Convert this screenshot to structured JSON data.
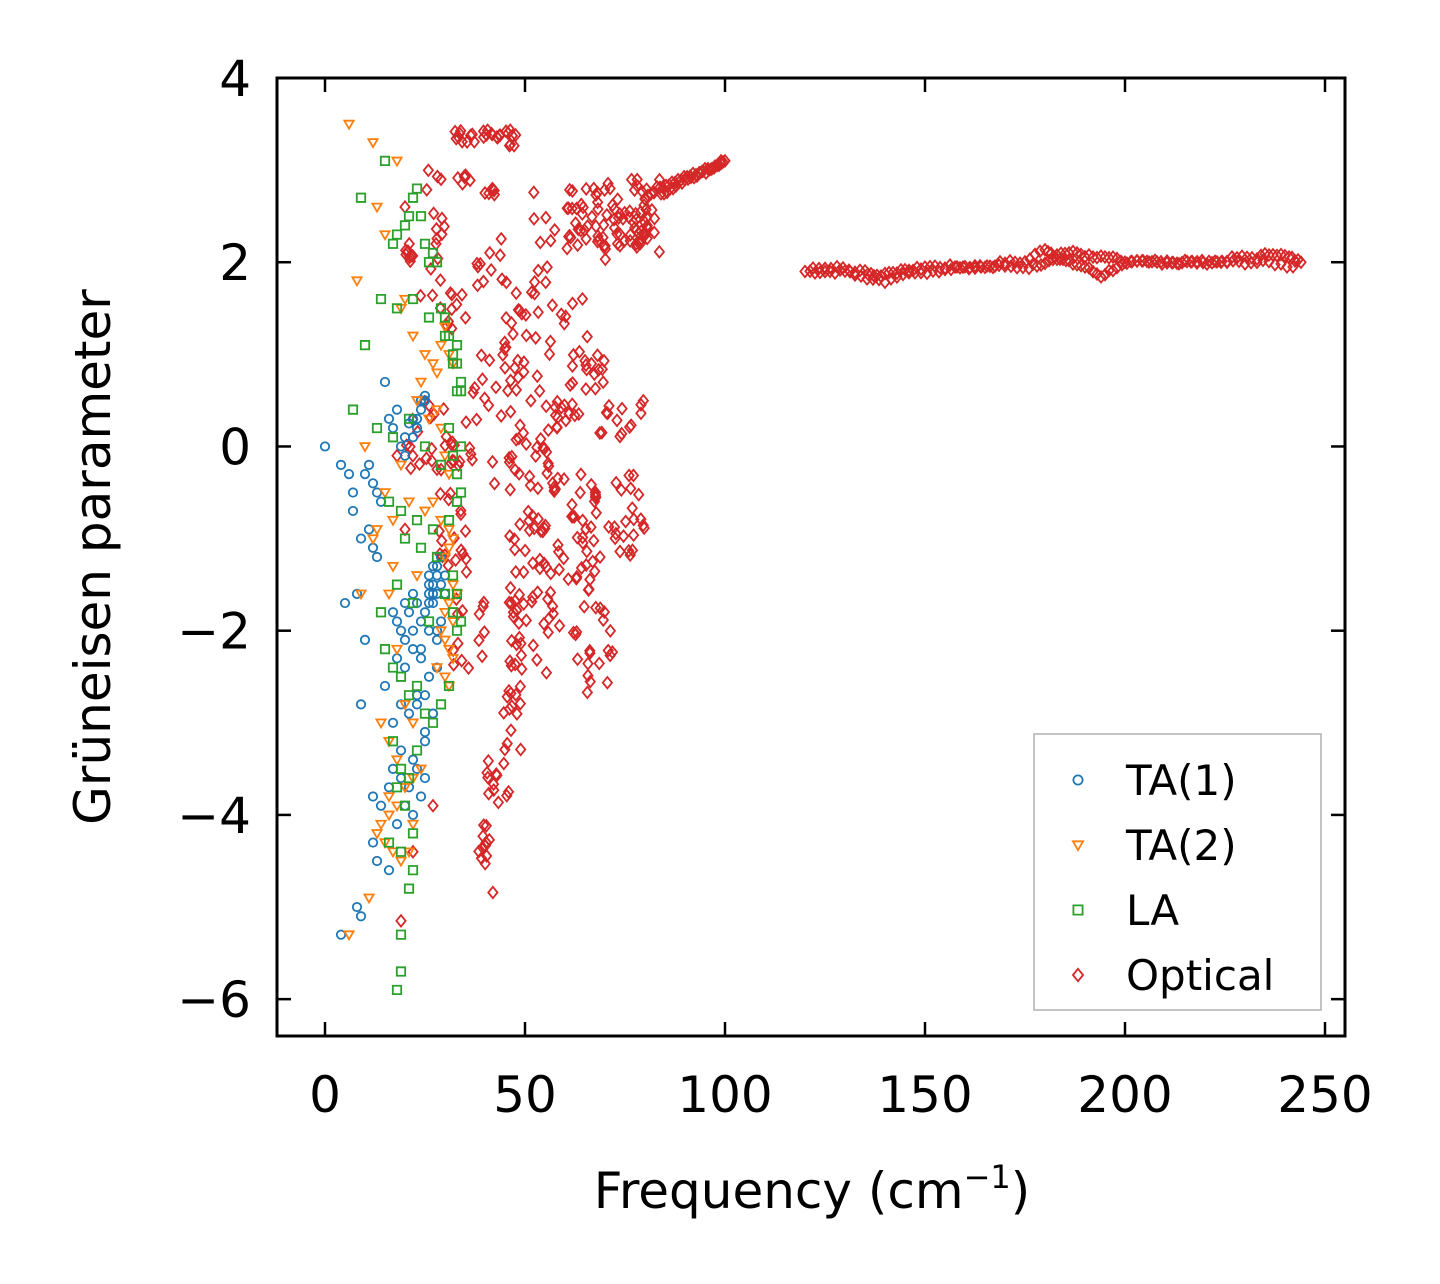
{
  "chart_data": {
    "type": "scatter",
    "title": "",
    "xlabel": "Frequency (cm",
    "xlabel_superscript": "−1",
    "xlabel_suffix": ")",
    "ylabel": "Grüneisen parameter",
    "xlim": [
      -12,
      255
    ],
    "ylim": [
      -6.4,
      4
    ],
    "xticks": [
      0,
      50,
      100,
      150,
      200,
      250
    ],
    "yticks": [
      -6,
      -4,
      -2,
      0,
      2,
      4
    ],
    "xtick_labels": [
      "0",
      "50",
      "100",
      "150",
      "200",
      "250"
    ],
    "ytick_labels": [
      "−6",
      "−4",
      "−2",
      "0",
      "2",
      "4"
    ],
    "grid": false,
    "legend_position": "lower-right",
    "series": [
      {
        "name": "TA(1)",
        "marker": "circle",
        "color": "#1f77b4",
        "x": [
          0,
          4,
          5,
          7,
          8,
          9,
          10,
          11,
          12,
          12,
          13,
          15,
          16,
          17,
          18,
          19,
          20,
          20,
          21,
          22,
          22,
          23,
          23,
          24,
          24,
          25,
          25,
          26,
          26,
          26,
          27,
          27,
          27,
          28,
          28,
          28,
          29,
          29,
          30,
          30,
          17,
          18,
          19,
          20,
          21,
          22,
          23,
          24,
          25,
          26,
          27,
          28,
          29,
          20,
          22,
          24,
          26,
          28,
          18,
          20,
          22,
          24,
          26,
          28,
          23,
          25,
          27,
          15,
          17,
          19,
          21,
          23,
          25,
          27,
          19,
          22,
          25,
          17,
          19,
          21,
          23,
          25,
          12,
          14,
          16,
          18,
          20,
          22,
          24,
          13,
          16,
          12,
          8,
          9,
          4,
          10,
          13,
          11,
          14,
          9,
          7,
          6
        ],
        "y": [
          0.0,
          -0.2,
          -1.7,
          -0.5,
          -1.6,
          -1.0,
          -0.3,
          -0.2,
          -0.4,
          -1.1,
          -0.5,
          0.7,
          0.3,
          0.2,
          0.4,
          0.0,
          -0.1,
          0.1,
          0.25,
          0.1,
          0.3,
          0.2,
          0.3,
          0.4,
          0.5,
          0.5,
          0.55,
          -1.5,
          -1.4,
          -1.6,
          -1.3,
          -1.5,
          -1.7,
          -1.4,
          -1.6,
          -1.3,
          -1.5,
          -1.2,
          -1.4,
          -1.6,
          -1.8,
          -1.9,
          -2.0,
          -1.7,
          -1.8,
          -1.6,
          -1.7,
          -1.9,
          -1.8,
          -1.7,
          -1.6,
          -2.0,
          -1.9,
          -2.1,
          -2.0,
          -2.2,
          -2.0,
          -2.1,
          -2.3,
          -2.4,
          -2.2,
          -2.3,
          -2.5,
          -2.4,
          -2.8,
          -2.7,
          -2.9,
          -2.6,
          -3.0,
          -2.8,
          -2.9,
          -2.7,
          -3.1,
          -2.9,
          -3.3,
          -3.4,
          -3.2,
          -3.5,
          -3.6,
          -3.7,
          -3.5,
          -3.6,
          -3.8,
          -3.9,
          -3.7,
          -4.1,
          -3.9,
          -4.0,
          -3.8,
          -4.5,
          -4.6,
          -4.3,
          -5.0,
          -5.1,
          -5.3,
          -2.1,
          -1.2,
          -0.9,
          -0.6,
          -2.8,
          -0.7,
          -0.3
        ],
        "note": "estimated from scatter; approximate"
      },
      {
        "name": "TA(2)",
        "marker": "triangle-down",
        "color": "#ff7f0e",
        "x": [
          6,
          8,
          12,
          13,
          15,
          18,
          19,
          10,
          13,
          17,
          20,
          22,
          25,
          27,
          28,
          29,
          30,
          31,
          32,
          23,
          24,
          26,
          28,
          29,
          30,
          31,
          25,
          27,
          29,
          31,
          32,
          30,
          31,
          32,
          33,
          30,
          31,
          32,
          29,
          30,
          31,
          32,
          28,
          30,
          31,
          16,
          18,
          20,
          22,
          14,
          16,
          18,
          22,
          24,
          16,
          18,
          20,
          22,
          13,
          15,
          17,
          19,
          14,
          16,
          21,
          11,
          6,
          9,
          12,
          15,
          17,
          19,
          21,
          23
        ],
        "y": [
          3.5,
          1.8,
          3.3,
          2.6,
          2.3,
          3.1,
          1.5,
          0.0,
          -0.9,
          -1.3,
          1.6,
          1.2,
          1.0,
          0.9,
          0.8,
          1.1,
          1.3,
          1.0,
          0.9,
          0.5,
          0.7,
          0.3,
          0.4,
          0.2,
          -0.1,
          -0.3,
          -0.7,
          -0.6,
          -0.8,
          -0.9,
          -1.0,
          -1.2,
          -1.1,
          -1.5,
          -1.6,
          -1.8,
          -1.7,
          -1.9,
          -2.0,
          -2.1,
          -2.2,
          -2.3,
          -2.4,
          -2.5,
          -2.6,
          -1.6,
          -2.2,
          -2.8,
          -3.0,
          -3.0,
          -3.2,
          -3.4,
          -3.6,
          -3.5,
          -3.8,
          -3.9,
          -3.7,
          -4.1,
          -4.2,
          -4.3,
          -4.4,
          -4.5,
          -4.1,
          -4.0,
          -4.4,
          -4.9,
          -5.3,
          -1.6,
          -1.0,
          -0.5,
          -0.8,
          -0.2,
          -0.6,
          -1.4
        ],
        "note": "estimated from scatter; approximate"
      },
      {
        "name": "LA",
        "marker": "square",
        "color": "#2ca02c",
        "x": [
          9,
          15,
          17,
          18,
          20,
          21,
          22,
          23,
          24,
          25,
          26,
          27,
          28,
          29,
          30,
          31,
          32,
          33,
          33,
          34,
          34,
          10,
          14,
          18,
          22,
          26,
          30,
          32,
          33,
          7,
          13,
          17,
          21,
          25,
          29,
          31,
          32,
          33,
          34,
          16,
          19,
          23,
          27,
          31,
          33,
          34,
          20,
          24,
          28,
          32,
          33,
          14,
          18,
          22,
          26,
          30,
          32,
          33,
          34,
          15,
          17,
          19,
          21,
          23,
          25,
          27,
          29,
          31,
          17,
          19,
          21,
          23,
          18,
          20,
          22,
          16,
          19,
          22,
          19,
          21,
          19,
          18
        ],
        "y": [
          2.7,
          3.1,
          2.2,
          2.3,
          2.4,
          2.5,
          2.7,
          2.8,
          2.5,
          2.2,
          2.0,
          2.1,
          2.0,
          1.5,
          1.4,
          1.2,
          1.0,
          0.9,
          1.1,
          0.7,
          0.6,
          1.1,
          1.6,
          1.5,
          1.6,
          1.4,
          1.2,
          0.9,
          0.6,
          0.4,
          0.2,
          0.1,
          0.3,
          0.0,
          -0.2,
          0.2,
          -0.1,
          -0.3,
          0.0,
          -0.6,
          -0.7,
          -0.8,
          -0.9,
          -0.8,
          -0.6,
          -0.5,
          -1.0,
          -1.1,
          -1.2,
          -1.4,
          -1.6,
          -1.8,
          -1.5,
          -1.7,
          -1.9,
          -1.6,
          -1.8,
          -2.0,
          -1.9,
          -2.2,
          -2.4,
          -2.5,
          -2.7,
          -2.6,
          -2.9,
          -3.0,
          -2.8,
          -2.6,
          -3.2,
          -3.5,
          -3.6,
          -3.3,
          -3.7,
          -3.9,
          -4.2,
          -4.3,
          -4.4,
          -4.6,
          -5.3,
          -4.8,
          -5.7,
          -5.9
        ],
        "note": "estimated from scatter; approximate"
      },
      {
        "name": "Optical",
        "marker": "diamond",
        "color": "#d62728",
        "generated": "dense band structure; bands sampled",
        "bands": [
          {
            "x": [
              120,
              125,
              130,
              135,
              138,
              142,
              146,
              150,
              155,
              160,
              165,
              170,
              175,
              180,
              183,
              186,
              190,
              194,
              198,
              203,
              208,
              213,
              218,
              223,
              228,
              233,
              237,
              241,
              244
            ],
            "y": [
              1.9,
              1.9,
              1.9,
              1.9,
              1.85,
              1.9,
              1.9,
              1.95,
              1.95,
              1.95,
              1.95,
              2.0,
              2.0,
              2.15,
              2.05,
              2.0,
              1.95,
              1.85,
              1.95,
              2.0,
              2.0,
              2.0,
              2.0,
              2.0,
              2.05,
              2.05,
              2.1,
              2.05,
              2.0
            ]
          },
          {
            "x": [
              122,
              128,
              134,
              140,
              146,
              152,
              158,
              164,
              170,
              176,
              180,
              184,
              188,
              192,
              196,
              200,
              206,
              212,
              218,
              224,
              230,
              236,
              242
            ],
            "y": [
              1.95,
              1.95,
              1.85,
              1.8,
              1.9,
              1.9,
              1.95,
              1.95,
              1.95,
              1.95,
              2.0,
              2.1,
              2.1,
              2.05,
              2.05,
              2.0,
              2.0,
              2.0,
              2.0,
              2.0,
              2.0,
              2.0,
              1.95
            ]
          },
          {
            "x": [
              80,
              83,
              86,
              89,
              92,
              95,
              98,
              100
            ],
            "y": [
              2.7,
              2.8,
              2.85,
              2.9,
              2.95,
              3.0,
              3.05,
              3.1
            ]
          },
          {
            "x": [
              84,
              87,
              90,
              93,
              96,
              99
            ],
            "y": [
              2.75,
              2.8,
              2.9,
              2.95,
              3.0,
              3.1
            ]
          }
        ],
        "clusters": [
          {
            "x": [
              32,
              38
            ],
            "y": [
              3.45,
              3.3
            ],
            "n": 10
          },
          {
            "x": [
              39,
              44
            ],
            "y": [
              3.5,
              3.3
            ],
            "n": 10
          },
          {
            "x": [
              45,
              48
            ],
            "y": [
              3.45,
              3.25
            ],
            "n": 8
          },
          {
            "x": [
              33,
              37
            ],
            "y": [
              2.95,
              2.85
            ],
            "n": 6
          },
          {
            "x": [
              40,
              44
            ],
            "y": [
              2.8,
              2.7
            ],
            "n": 6
          },
          {
            "x": [
              25,
              30
            ],
            "y": [
              3.0,
              2.3
            ],
            "n": 8
          },
          {
            "x": [
              20,
              33
            ],
            "y": [
              2.3,
              1.6
            ],
            "n": 16
          },
          {
            "x": [
              28,
              36
            ],
            "y": [
              1.8,
              1.2
            ],
            "n": 10
          },
          {
            "x": [
              38,
              46
            ],
            "y": [
              2.3,
              1.6
            ],
            "n": 10
          },
          {
            "x": [
              44,
              54
            ],
            "y": [
              1.8,
              0.3
            ],
            "n": 22
          },
          {
            "x": [
              52,
              66
            ],
            "y": [
              2.8,
              1.0
            ],
            "n": 28
          },
          {
            "x": [
              60,
              72
            ],
            "y": [
              2.7,
              2.0
            ],
            "n": 20
          },
          {
            "x": [
              66,
              84
            ],
            "y": [
              2.9,
              2.1
            ],
            "n": 40
          },
          {
            "x": [
              72,
              82
            ],
            "y": [
              2.6,
              2.2
            ],
            "n": 26
          },
          {
            "x": [
              61,
              70
            ],
            "y": [
              1.0,
              0.6
            ],
            "n": 16
          },
          {
            "x": [
              55,
              66
            ],
            "y": [
              0.5,
              0.2
            ],
            "n": 14
          },
          {
            "x": [
              68,
              80
            ],
            "y": [
              0.5,
              0.1
            ],
            "n": 14
          },
          {
            "x": [
              20,
              34
            ],
            "y": [
              0.5,
              -0.3
            ],
            "n": 22
          },
          {
            "x": [
              30,
              38
            ],
            "y": [
              0.3,
              -0.2
            ],
            "n": 10
          },
          {
            "x": [
              46,
              56
            ],
            "y": [
              0.0,
              -0.5
            ],
            "n": 14
          },
          {
            "x": [
              28,
              36
            ],
            "y": [
              -0.5,
              -1.4
            ],
            "n": 18
          },
          {
            "x": [
              32,
              40
            ],
            "y": [
              -1.6,
              -2.5
            ],
            "n": 14
          },
          {
            "x": [
              46,
              56
            ],
            "y": [
              -0.7,
              -1.5
            ],
            "n": 22
          },
          {
            "x": [
              56,
              68
            ],
            "y": [
              -0.3,
              -1.2
            ],
            "n": 26
          },
          {
            "x": [
              66,
              80
            ],
            "y": [
              -0.3,
              -1.2
            ],
            "n": 26
          },
          {
            "x": [
              46,
              56
            ],
            "y": [
              -1.5,
              -2.5
            ],
            "n": 30
          },
          {
            "x": [
              56,
              70
            ],
            "y": [
              -1.2,
              -2.0
            ],
            "n": 24
          },
          {
            "x": [
              62,
              72
            ],
            "y": [
              -2.0,
              -2.7
            ],
            "n": 16
          },
          {
            "x": [
              44,
              50
            ],
            "y": [
              -2.5,
              -3.3
            ],
            "n": 14
          },
          {
            "x": [
              40,
              46
            ],
            "y": [
              -3.3,
              -4.0
            ],
            "n": 12
          },
          {
            "x": [
              38,
              42
            ],
            "y": [
              -4.0,
              -4.9
            ],
            "n": 12
          },
          {
            "x": [
              40,
              56
            ],
            "y": [
              0.3,
              -0.5
            ],
            "n": 12
          },
          {
            "x": [
              44,
              52
            ],
            "y": [
              1.5,
              0.8
            ],
            "n": 10
          },
          {
            "x": [
              36,
              44
            ],
            "y": [
              1.0,
              0.4
            ],
            "n": 8
          }
        ],
        "outliers": {
          "x": [
            19,
            20,
            20,
            29,
            22,
            18,
            27
          ],
          "y": [
            -5.15,
            2.6,
            -0.9,
            2.9,
            -4.4,
            -0.1,
            -3.9
          ]
        }
      }
    ]
  }
}
